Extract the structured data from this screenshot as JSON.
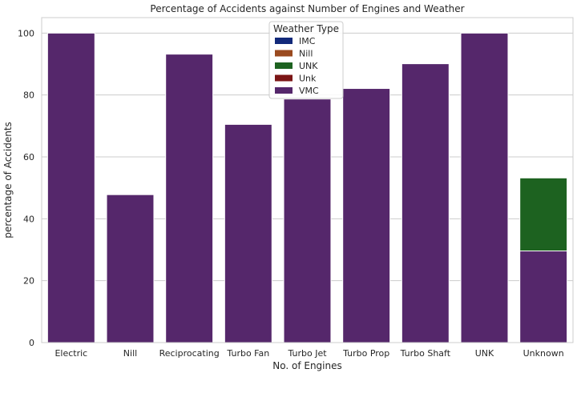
{
  "chart_data": {
    "type": "bar",
    "stacked": false,
    "title": "Percentage of Accidents against Number of Engines and Weather",
    "xlabel": "No. of Engines",
    "ylabel": "percentage of Accidents",
    "ylim": [
      0,
      105
    ],
    "yticks": [
      0,
      20,
      40,
      60,
      80,
      100
    ],
    "grid": "y",
    "legend_title": "Weather Type",
    "legend_position": "top-center",
    "categories": [
      "Electric",
      "Nill",
      "Reciprocating",
      "Turbo Fan",
      "Turbo Jet",
      "Turbo Prop",
      "Turbo Shaft",
      "UNK",
      "Unknown"
    ],
    "series": [
      {
        "name": "IMC",
        "color": "#12297a",
        "values": [
          null,
          null,
          null,
          null,
          null,
          null,
          null,
          null,
          null
        ]
      },
      {
        "name": "Nill",
        "color": "#9a4a1f",
        "values": [
          null,
          null,
          null,
          null,
          null,
          null,
          null,
          null,
          null
        ]
      },
      {
        "name": "UNK",
        "color": "#1d6220",
        "values": [
          null,
          null,
          null,
          null,
          null,
          null,
          null,
          null,
          53.2
        ]
      },
      {
        "name": "Unk",
        "color": "#7b1515",
        "values": [
          null,
          null,
          null,
          null,
          null,
          null,
          null,
          null,
          null
        ]
      },
      {
        "name": "VMC",
        "color": "#55276b",
        "values": [
          100,
          47.8,
          93.2,
          70.5,
          78.7,
          82.1,
          90.1,
          100,
          29.6
        ]
      }
    ]
  }
}
